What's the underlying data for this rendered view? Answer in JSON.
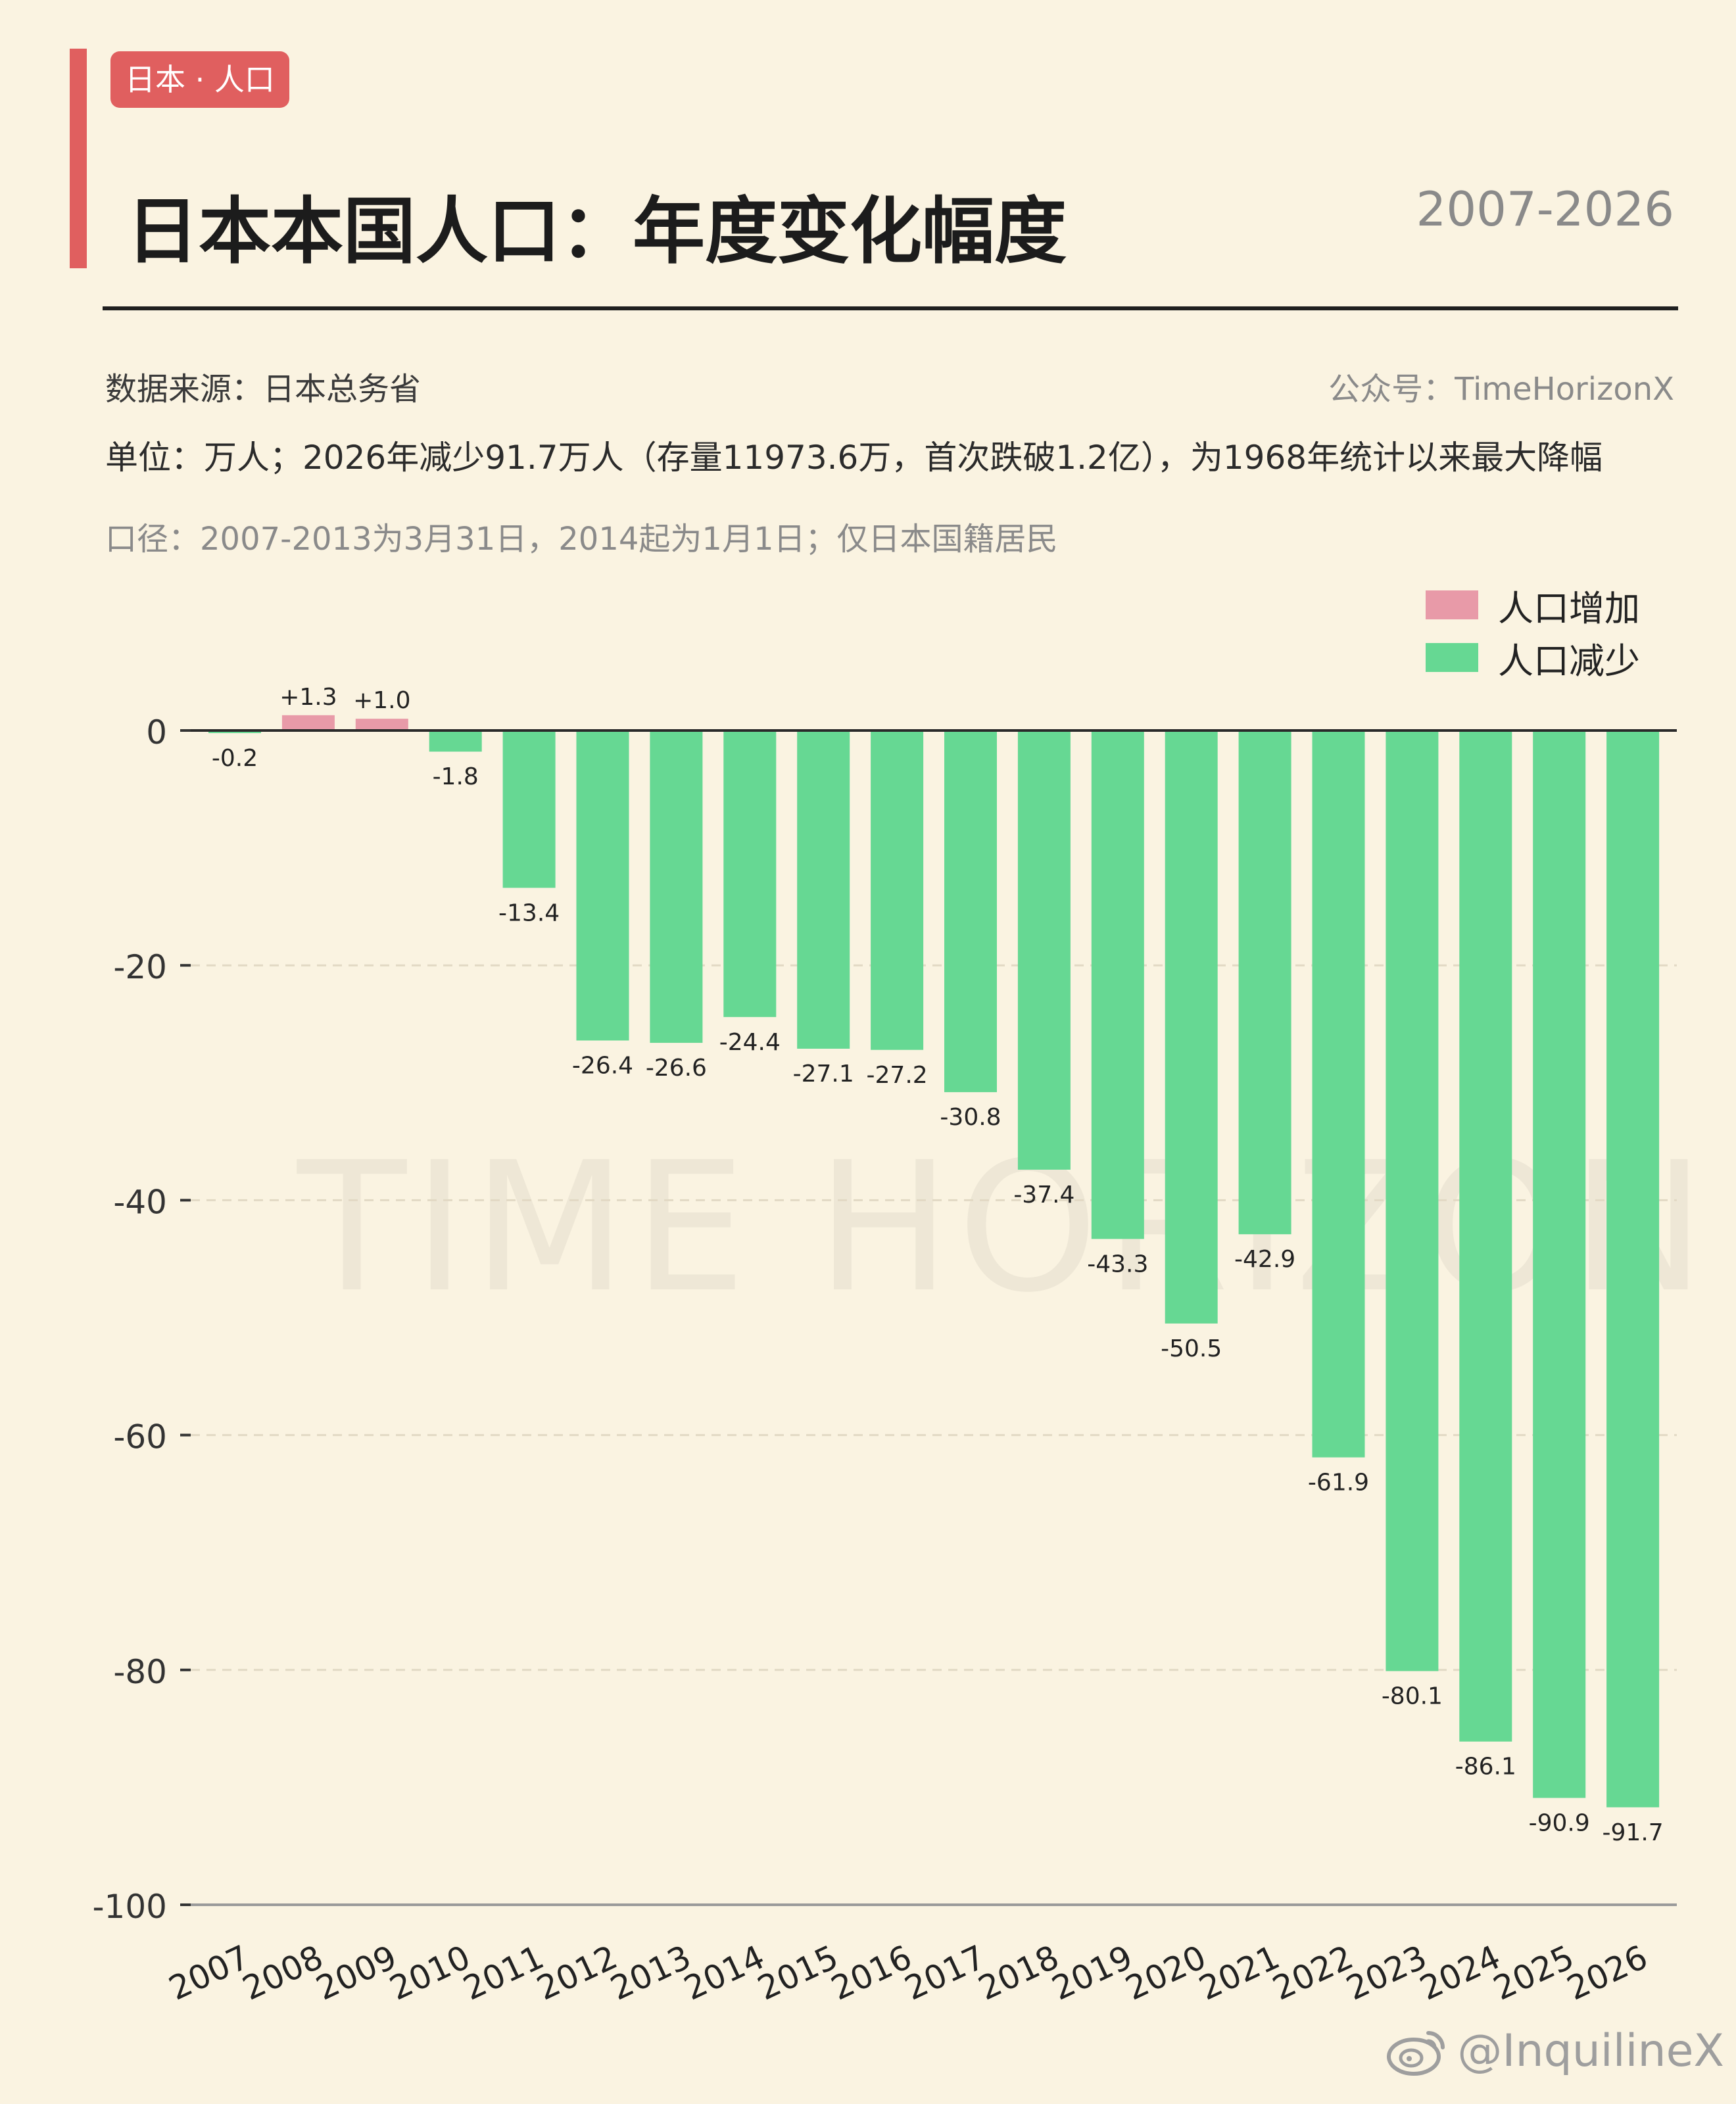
{
  "header": {
    "tag": "日本 · 人口",
    "title": "日本本国人口：年度变化幅度",
    "years": "2007-2026",
    "source": "数据来源：日本总务省",
    "account": "公众号：TimeHorizonX",
    "unit_note": "单位：万人；2026年减少91.7万人（存量11973.6万，首次跌破1.2亿），为1968年统计以来最大降幅",
    "caliber_note": "口径：2007-2013为3月31日，2014起为1月1日；仅日本国籍居民"
  },
  "watermark": "TIME HORIZON",
  "legend": {
    "items": [
      {
        "label": "人口增加",
        "color": "#e89aa8"
      },
      {
        "label": "人口减少",
        "color": "#66d893"
      }
    ]
  },
  "footer": {
    "handle": "@InquilineX",
    "icon": "weibo-icon"
  },
  "colors": {
    "increase": "#e89aa8",
    "decrease": "#66d893",
    "accent": "#e05f5f"
  },
  "chart_data": {
    "type": "bar",
    "categories": [
      "2007",
      "2008",
      "2009",
      "2010",
      "2011",
      "2012",
      "2013",
      "2014",
      "2015",
      "2016",
      "2017",
      "2018",
      "2019",
      "2020",
      "2021",
      "2022",
      "2023",
      "2024",
      "2025",
      "2026"
    ],
    "values": [
      -0.2,
      1.3,
      1.0,
      -1.8,
      -13.4,
      -26.4,
      -26.6,
      -24.4,
      -27.1,
      -27.2,
      -30.8,
      -37.4,
      -43.3,
      -50.5,
      -42.9,
      -61.9,
      -80.1,
      -86.1,
      -90.9,
      -91.7
    ],
    "value_labels": [
      "-0.2",
      "+1.3",
      "+1.0",
      "-1.8",
      "-13.4",
      "-26.4",
      "-26.6",
      "-24.4",
      "-27.1",
      "-27.2",
      "-30.8",
      "-37.4",
      "-43.3",
      "-50.5",
      "-42.9",
      "-61.9",
      "-80.1",
      "-86.1",
      "-90.9",
      "-91.7"
    ],
    "yticks": [
      0,
      -20,
      -40,
      -60,
      -80,
      -100
    ],
    "ylim": [
      -100,
      0
    ],
    "grid": true
  }
}
